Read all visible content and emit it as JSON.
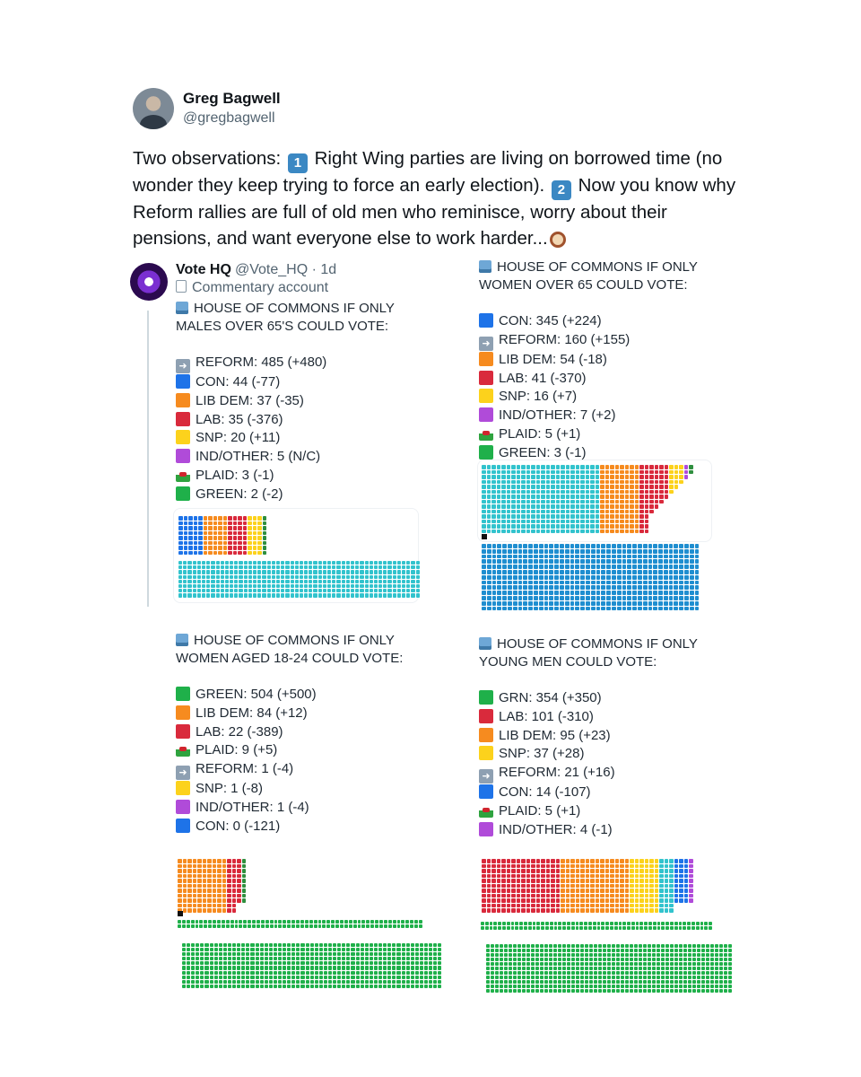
{
  "tweet": {
    "author": {
      "name": "Greg Bagwell",
      "handle": "@gregbagwell"
    },
    "text_part1": "Two observations: ",
    "key1": "1",
    "text_part2": " Right Wing parties are living on borrowed time (no wonder they keep trying to force an early election). ",
    "key2": "2",
    "text_part3": " Now you know why Reform rallies are full of old men who reminisce, worry about their pensions, and want everyone else to work harder...",
    "trailing_icon": "mantelpiece-clock-icon"
  },
  "quoted": {
    "name": "Vote HQ",
    "meta": "@Vote_HQ · 1d",
    "label": "Commentary account"
  },
  "colors": {
    "REFORM": "#32c3cd",
    "CON": "#1e73e8",
    "LIB DEM": "#f68b1f",
    "LAB": "#d92a3c",
    "SNP": "#fcd21c",
    "IND/OTHER": "#b04bd9",
    "PLAID": "#2f8f3f",
    "GREEN": "#1fb04a",
    "GRN": "#1fb04a",
    "CON_LARGE": "#1f8ed0",
    "misc": "#7f8c8d"
  },
  "panels": [
    {
      "header_line1": "HOUSE OF COMMONS IF ONLY",
      "header_line2": "MALES OVER 65'S COULD VOTE:",
      "rows": [
        {
          "party": "REFORM",
          "icon": "arrow",
          "text": "REFORM: 485 (+480)"
        },
        {
          "party": "CON",
          "icon": "square",
          "text": "CON: 44 (-77)"
        },
        {
          "party": "LIB DEM",
          "icon": "square",
          "text": "LIB DEM: 37 (-35)"
        },
        {
          "party": "LAB",
          "icon": "square",
          "text": "LAB: 35 (-376)"
        },
        {
          "party": "SNP",
          "icon": "square",
          "text": "SNP: 20 (+11)"
        },
        {
          "party": "IND/OTHER",
          "icon": "square",
          "text": "IND/OTHER: 5 (N/C)"
        },
        {
          "party": "PLAID",
          "icon": "flag",
          "text": "PLAID: 3 (-1)"
        },
        {
          "party": "GREEN",
          "icon": "square",
          "text": "GREEN: 2 (-2)"
        }
      ]
    },
    {
      "header_line1": "HOUSE OF COMMONS IF ONLY",
      "header_line2": "WOMEN OVER 65 COULD VOTE:",
      "rows": [
        {
          "party": "CON",
          "icon": "square",
          "text": "CON: 345 (+224)"
        },
        {
          "party": "REFORM",
          "icon": "arrow",
          "text": "REFORM: 160 (+155)"
        },
        {
          "party": "LIB DEM",
          "icon": "square",
          "text": "LIB DEM: 54 (-18)"
        },
        {
          "party": "LAB",
          "icon": "square",
          "text": "LAB: 41 (-370)"
        },
        {
          "party": "SNP",
          "icon": "square",
          "text": "SNP: 16 (+7)"
        },
        {
          "party": "IND/OTHER",
          "icon": "square",
          "text": "IND/OTHER: 7 (+2)"
        },
        {
          "party": "PLAID",
          "icon": "flag",
          "text": "PLAID: 5 (+1)"
        },
        {
          "party": "GREEN",
          "icon": "square",
          "text": "GREEN: 3 (-1)"
        }
      ]
    },
    {
      "header_line1": "HOUSE OF COMMONS IF ONLY",
      "header_line2": "WOMEN AGED 18-24 COULD VOTE:",
      "rows": [
        {
          "party": "GREEN",
          "icon": "square",
          "text": "GREEN: 504 (+500)"
        },
        {
          "party": "LIB DEM",
          "icon": "square",
          "text": "LIB DEM: 84 (+12)"
        },
        {
          "party": "LAB",
          "icon": "square",
          "text": "LAB: 22 (-389)"
        },
        {
          "party": "PLAID",
          "icon": "flag",
          "text": "PLAID: 9 (+5)"
        },
        {
          "party": "REFORM",
          "icon": "arrow",
          "text": "REFORM: 1 (-4)"
        },
        {
          "party": "SNP",
          "icon": "square",
          "text": "SNP: 1 (-8)"
        },
        {
          "party": "IND/OTHER",
          "icon": "square",
          "text": "IND/OTHER: 1 (-4)"
        },
        {
          "party": "CON",
          "icon": "square",
          "text": "CON: 0 (-121)"
        }
      ]
    },
    {
      "header_line1": "HOUSE OF COMMONS IF ONLY",
      "header_line2": "YOUNG MEN COULD VOTE:",
      "rows": [
        {
          "party": "GRN",
          "icon": "square",
          "text": "GRN: 354 (+350)"
        },
        {
          "party": "LAB",
          "icon": "square",
          "text": "LAB: 101 (-310)"
        },
        {
          "party": "LIB DEM",
          "icon": "square",
          "text": "LIB DEM: 95 (+23)"
        },
        {
          "party": "SNP",
          "icon": "square",
          "text": "SNP: 37 (+28)"
        },
        {
          "party": "REFORM",
          "icon": "arrow",
          "text": "REFORM: 21 (+16)"
        },
        {
          "party": "CON",
          "icon": "square",
          "text": "CON: 14 (-107)"
        },
        {
          "party": "PLAID",
          "icon": "flag",
          "text": "PLAID: 5 (+1)"
        },
        {
          "party": "IND/OTHER",
          "icon": "square",
          "text": "IND/OTHER: 4 (-1)"
        }
      ]
    }
  ],
  "chart_data": [
    {
      "type": "table",
      "title": "HOUSE OF COMMONS IF ONLY MALES OVER 65'S COULD VOTE:",
      "categories": [
        "REFORM",
        "CON",
        "LIB DEM",
        "LAB",
        "SNP",
        "IND/OTHER",
        "PLAID",
        "GREEN"
      ],
      "values": [
        485,
        44,
        37,
        35,
        20,
        5,
        3,
        2
      ],
      "changes": [
        "+480",
        "-77",
        "-35",
        "-376",
        "+11",
        "N/C",
        "-1",
        "-2"
      ]
    },
    {
      "type": "table",
      "title": "HOUSE OF COMMONS IF ONLY WOMEN OVER 65 COULD VOTE:",
      "categories": [
        "CON",
        "REFORM",
        "LIB DEM",
        "LAB",
        "SNP",
        "IND/OTHER",
        "PLAID",
        "GREEN"
      ],
      "values": [
        345,
        160,
        54,
        41,
        16,
        7,
        5,
        3
      ],
      "changes": [
        "+224",
        "+155",
        "-18",
        "-370",
        "+7",
        "+2",
        "+1",
        "-1"
      ]
    },
    {
      "type": "table",
      "title": "HOUSE OF COMMONS IF ONLY WOMEN AGED 18-24 COULD VOTE:",
      "categories": [
        "GREEN",
        "LIB DEM",
        "LAB",
        "PLAID",
        "REFORM",
        "SNP",
        "IND/OTHER",
        "CON"
      ],
      "values": [
        504,
        84,
        22,
        9,
        1,
        1,
        1,
        0
      ],
      "changes": [
        "+500",
        "+12",
        "-389",
        "+5",
        "-4",
        "-8",
        "-4",
        "-121"
      ]
    },
    {
      "type": "table",
      "title": "HOUSE OF COMMONS IF ONLY YOUNG MEN COULD VOTE:",
      "categories": [
        "GRN",
        "LAB",
        "LIB DEM",
        "SNP",
        "REFORM",
        "CON",
        "PLAID",
        "IND/OTHER"
      ],
      "values": [
        354,
        101,
        95,
        37,
        21,
        14,
        5,
        4
      ],
      "changes": [
        "+350",
        "-310",
        "+23",
        "+28",
        "+16",
        "-107",
        "+1",
        "-1"
      ]
    }
  ],
  "parliament_charts": [
    {
      "top_order": [
        "CON",
        "LIB DEM",
        "LAB",
        "SNP",
        "IND/OTHER",
        "PLAID",
        "GREEN"
      ],
      "bottom_party": "REFORM"
    },
    {
      "top_order": [
        "REFORM",
        "LIB DEM",
        "LAB",
        "SNP",
        "IND/OTHER",
        "PLAID",
        "GREEN"
      ],
      "bottom_party": "CON_LARGE"
    },
    {
      "top_order": [
        "LIB DEM",
        "LAB",
        "PLAID",
        "REFORM",
        "SNP",
        "IND/OTHER",
        "CON"
      ],
      "bottom_party": "GREEN"
    },
    {
      "top_order": [
        "LAB",
        "LIB DEM",
        "SNP",
        "REFORM",
        "CON",
        "PLAID",
        "IND/OTHER"
      ],
      "bottom_party": "GRN"
    }
  ]
}
